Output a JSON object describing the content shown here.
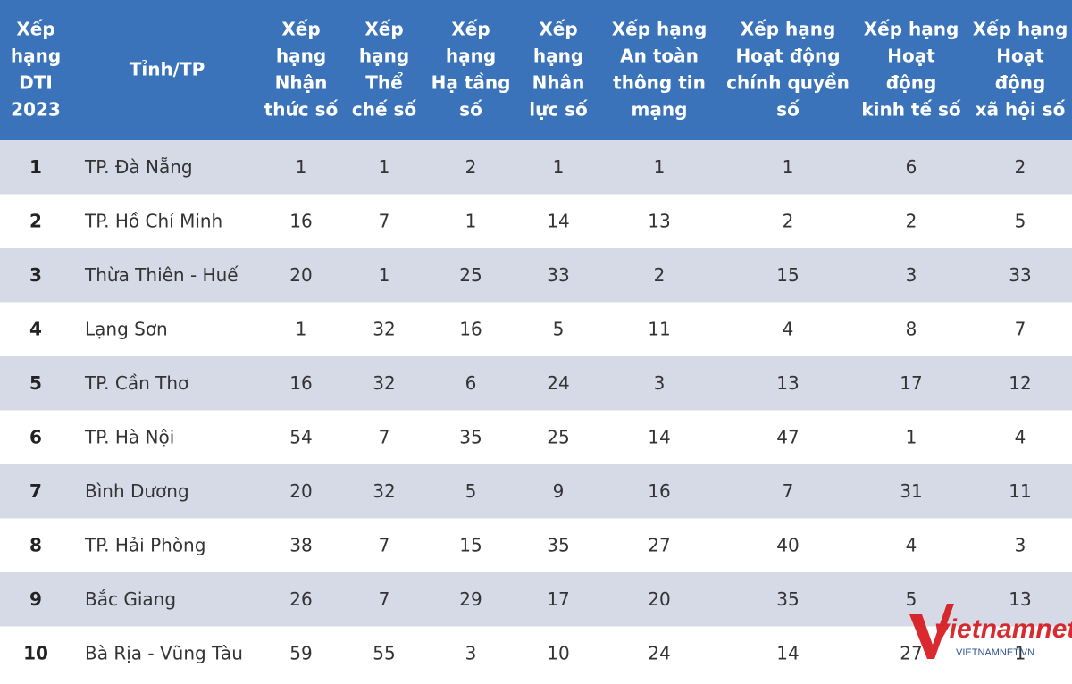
{
  "table": {
    "headers": [
      [
        "Xếp",
        "hạng",
        "DTI",
        "2023"
      ],
      [
        "Tỉnh/TP"
      ],
      [
        "Xếp",
        "hạng",
        "Nhận",
        "thức số"
      ],
      [
        "Xếp",
        "hạng",
        "Thể",
        "chế số"
      ],
      [
        "Xếp",
        "hạng",
        "Hạ tầng",
        "số"
      ],
      [
        "Xếp",
        "hạng",
        "Nhân",
        "lực số"
      ],
      [
        "Xếp hạng",
        "An toàn",
        "thông tin",
        "mạng"
      ],
      [
        "Xếp hạng",
        "Hoạt động",
        "chính quyền",
        "số"
      ],
      [
        "Xếp hạng",
        "Hoạt",
        "động",
        "kinh tế số"
      ],
      [
        "Xếp hạng",
        "Hoạt",
        "động",
        "xã hội số"
      ]
    ],
    "rows": [
      [
        1,
        "TP. Đà Nẵng",
        1,
        1,
        2,
        1,
        1,
        1,
        6,
        2
      ],
      [
        2,
        "TP. Hồ Chí Minh",
        16,
        7,
        1,
        14,
        13,
        2,
        2,
        5
      ],
      [
        3,
        "Thừa Thiên - Huế",
        20,
        1,
        25,
        33,
        2,
        15,
        3,
        33
      ],
      [
        4,
        "Lạng Sơn",
        1,
        32,
        16,
        5,
        11,
        4,
        8,
        7
      ],
      [
        5,
        "TP. Cần Thơ",
        16,
        32,
        6,
        24,
        3,
        13,
        17,
        12
      ],
      [
        6,
        "TP. Hà Nội",
        54,
        7,
        35,
        25,
        14,
        47,
        1,
        4
      ],
      [
        7,
        "Bình Dương",
        20,
        32,
        5,
        9,
        16,
        7,
        31,
        11
      ],
      [
        8,
        "TP. Hải Phòng",
        38,
        7,
        15,
        35,
        27,
        40,
        4,
        3
      ],
      [
        9,
        "Bắc Giang",
        26,
        7,
        29,
        17,
        20,
        35,
        5,
        13
      ],
      [
        10,
        "Bà Rịa - Vũng Tàu",
        59,
        55,
        3,
        10,
        24,
        14,
        27,
        1
      ]
    ]
  },
  "watermark": {
    "logo": "vietnamnet",
    "url": "VIETNAMNET.VN"
  }
}
